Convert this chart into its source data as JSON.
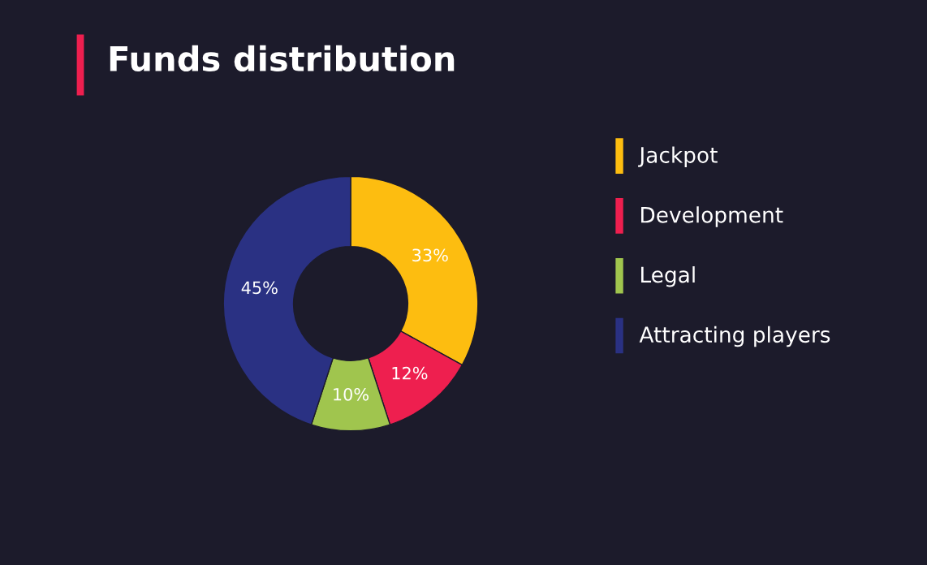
{
  "chart_data": {
    "type": "donut",
    "title": "Funds distribution",
    "categories": [
      "Jackpot",
      "Development",
      "Legal",
      "Attracting players"
    ],
    "values": [
      33,
      12,
      10,
      45
    ],
    "colors": [
      "#fdbd10",
      "#ee1f4f",
      "#a0c54e",
      "#2a3183"
    ],
    "value_labels": [
      "33%",
      "12%",
      "10%",
      "45%"
    ],
    "legend": "right"
  }
}
